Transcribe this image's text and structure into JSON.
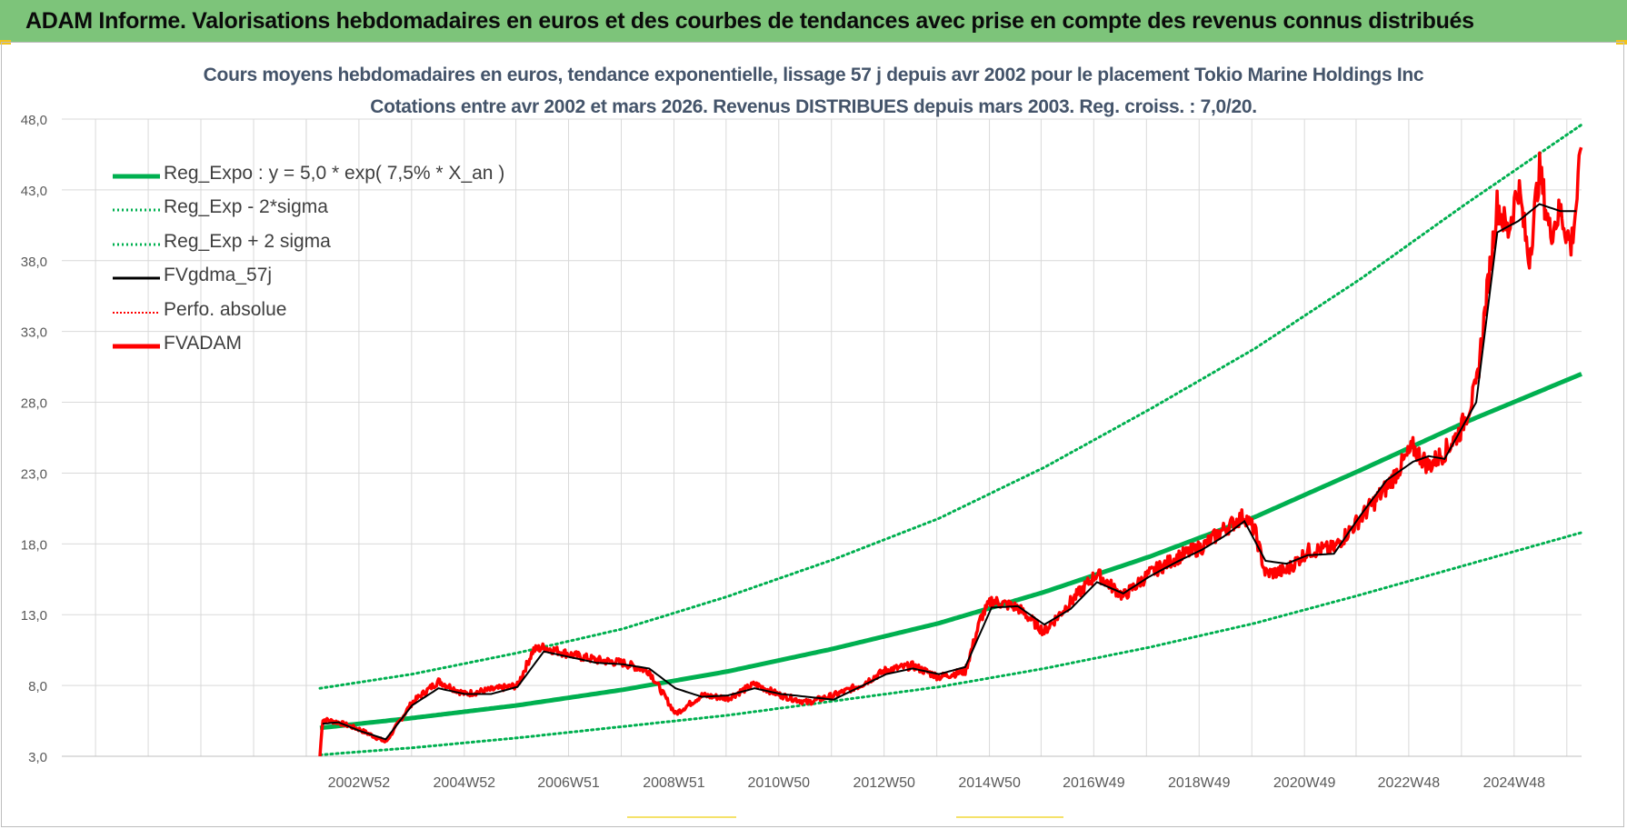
{
  "header": {
    "title": "ADAM Informe. Valorisations hebdomadaires en euros et des courbes de tendances avec prise en compte des revenus connus distribués"
  },
  "colors": {
    "banner": "#7dc47a",
    "reg_expo": "#00b050",
    "sigma_bands": "#00b050",
    "fvgdma": "#000000",
    "fvadam": "#ff0000",
    "perfo": "#ff0000"
  },
  "chart_data": {
    "type": "line",
    "title": "Cours moyens hebdomadaires en euros, tendance exponentielle, lissage 57 j depuis avr 2002 pour le placement Tokio Marine Holdings Inc",
    "subtitle": "Cotations entre avr 2002 et mars 2026.  Revenus DISTRIBUES depuis mars 2003. Reg. croiss. : 7,0/20.",
    "xlabel": "",
    "ylabel": "",
    "ylim": [
      3.0,
      48.0
    ],
    "y_ticks": [
      "3,0",
      "8,0",
      "13,0",
      "18,0",
      "23,0",
      "28,0",
      "33,0",
      "38,0",
      "43,0",
      "48,0"
    ],
    "x_ticks": [
      "2002W52",
      "2004W52",
      "2006W51",
      "2008W51",
      "2010W50",
      "2012W50",
      "2014W50",
      "2016W49",
      "2018W49",
      "2020W49",
      "2022W48",
      "2024W48"
    ],
    "x_tick_years": [
      2002.99,
      2004.99,
      2006.97,
      2008.97,
      2010.96,
      2012.96,
      2014.96,
      2016.94,
      2018.94,
      2020.94,
      2022.92,
      2024.92
    ],
    "x_range": [
      2002.25,
      2026.2
    ],
    "grid": true,
    "legend_position": "top-left",
    "legend": [
      {
        "key": "reg_expo",
        "label": "Reg_Expo : y = 5,0 * exp( 7,5% *  X_an )"
      },
      {
        "key": "reg_minus",
        "label": "Reg_Exp - 2*sigma"
      },
      {
        "key": "reg_plus",
        "label": "Reg_Exp + 2 sigma"
      },
      {
        "key": "fvgdma",
        "label": "FVgdma_57j"
      },
      {
        "key": "perfo",
        "label": "Perfo. absolue"
      },
      {
        "key": "fvadam",
        "label": "FVADAM"
      }
    ],
    "series": [
      {
        "name": "Reg_Expo",
        "x": [
          2002.25,
          2004,
          2006,
          2008,
          2010,
          2012,
          2014,
          2016,
          2018,
          2020,
          2022,
          2024,
          2026.2
        ],
        "values": [
          5.0,
          5.7,
          6.6,
          7.7,
          9.0,
          10.6,
          12.4,
          14.6,
          17.1,
          19.9,
          23.2,
          26.6,
          30.0
        ]
      },
      {
        "name": "Reg_Exp - 2*sigma",
        "x": [
          2002.25,
          2004,
          2006,
          2008,
          2010,
          2012,
          2014,
          2016,
          2018,
          2020,
          2022,
          2024,
          2026.2
        ],
        "values": [
          3.1,
          3.6,
          4.3,
          5.1,
          5.9,
          6.9,
          7.9,
          9.2,
          10.7,
          12.4,
          14.4,
          16.5,
          18.8
        ]
      },
      {
        "name": "Reg_Exp + 2 sigma",
        "x": [
          2002.25,
          2004,
          2006,
          2008,
          2010,
          2012,
          2014,
          2016,
          2018,
          2020,
          2022,
          2024,
          2026.2
        ],
        "values": [
          7.8,
          8.8,
          10.3,
          12.0,
          14.3,
          16.9,
          19.8,
          23.4,
          27.5,
          31.8,
          36.7,
          42.0,
          47.6
        ]
      },
      {
        "name": "FVgdma_57j",
        "x": [
          2002.3,
          2002.6,
          2003.0,
          2003.5,
          2004.0,
          2004.5,
          2005.0,
          2005.5,
          2006.0,
          2006.5,
          2007.0,
          2007.5,
          2008.0,
          2008.5,
          2009.0,
          2009.5,
          2010.0,
          2010.5,
          2011.0,
          2011.5,
          2012.0,
          2012.5,
          2013.0,
          2013.5,
          2014.0,
          2014.5,
          2015.0,
          2015.5,
          2016.0,
          2016.5,
          2017.0,
          2017.5,
          2018.0,
          2018.5,
          2019.0,
          2019.4,
          2019.8,
          2020.2,
          2020.6,
          2021.0,
          2021.5,
          2022.0,
          2022.5,
          2023.0,
          2023.3,
          2023.6,
          2023.9,
          2024.2,
          2024.6,
          2025.0,
          2025.4,
          2025.8,
          2026.1
        ],
        "values": [
          5.3,
          5.4,
          4.8,
          4.2,
          6.6,
          7.8,
          7.4,
          7.4,
          7.9,
          10.4,
          10.0,
          9.6,
          9.5,
          9.2,
          7.8,
          7.2,
          7.3,
          7.8,
          7.4,
          7.2,
          7.0,
          7.9,
          8.8,
          9.2,
          8.8,
          9.3,
          13.5,
          13.6,
          12.3,
          13.4,
          15.3,
          14.5,
          15.7,
          16.7,
          17.6,
          18.5,
          19.6,
          16.8,
          16.6,
          17.2,
          17.3,
          20.0,
          22.5,
          23.8,
          24.2,
          24.0,
          26.0,
          28.0,
          40.0,
          40.8,
          42.0,
          41.5,
          41.5
        ]
      },
      {
        "name": "FVADAM",
        "x": [
          2002.25,
          2002.3,
          2002.6,
          2003.0,
          2003.5,
          2004.0,
          2004.5,
          2005.0,
          2005.5,
          2006.0,
          2006.3,
          2006.5,
          2007.0,
          2007.5,
          2008.0,
          2008.5,
          2009.0,
          2009.5,
          2010.0,
          2010.5,
          2011.0,
          2011.5,
          2012.0,
          2012.5,
          2013.0,
          2013.5,
          2014.0,
          2014.5,
          2014.8,
          2015.0,
          2015.5,
          2016.0,
          2016.5,
          2017.0,
          2017.5,
          2018.0,
          2018.5,
          2019.0,
          2019.4,
          2019.8,
          2020.0,
          2020.2,
          2020.6,
          2021.0,
          2021.5,
          2022.0,
          2022.5,
          2023.0,
          2023.3,
          2023.6,
          2023.9,
          2024.2,
          2024.6,
          2024.8,
          2025.0,
          2025.2,
          2025.4,
          2025.6,
          2025.8,
          2026.0,
          2026.1,
          2026.2
        ],
        "values": [
          3.0,
          5.6,
          5.4,
          4.9,
          4.0,
          6.8,
          8.3,
          7.4,
          7.7,
          8.0,
          10.5,
          10.7,
          10.2,
          9.8,
          9.6,
          9.0,
          6.0,
          7.3,
          7.1,
          8.1,
          7.3,
          6.8,
          7.3,
          8.0,
          9.1,
          9.4,
          8.6,
          9.0,
          12.8,
          14.0,
          13.5,
          11.8,
          13.9,
          15.9,
          14.3,
          15.9,
          17.0,
          17.8,
          19.0,
          20.0,
          18.9,
          15.9,
          16.1,
          17.5,
          17.7,
          19.8,
          22.0,
          24.8,
          23.5,
          24.5,
          26.0,
          29.0,
          42.0,
          40.0,
          43.3,
          38.0,
          44.4,
          40.0,
          41.5,
          39.0,
          42.0,
          46.0
        ]
      }
    ]
  }
}
